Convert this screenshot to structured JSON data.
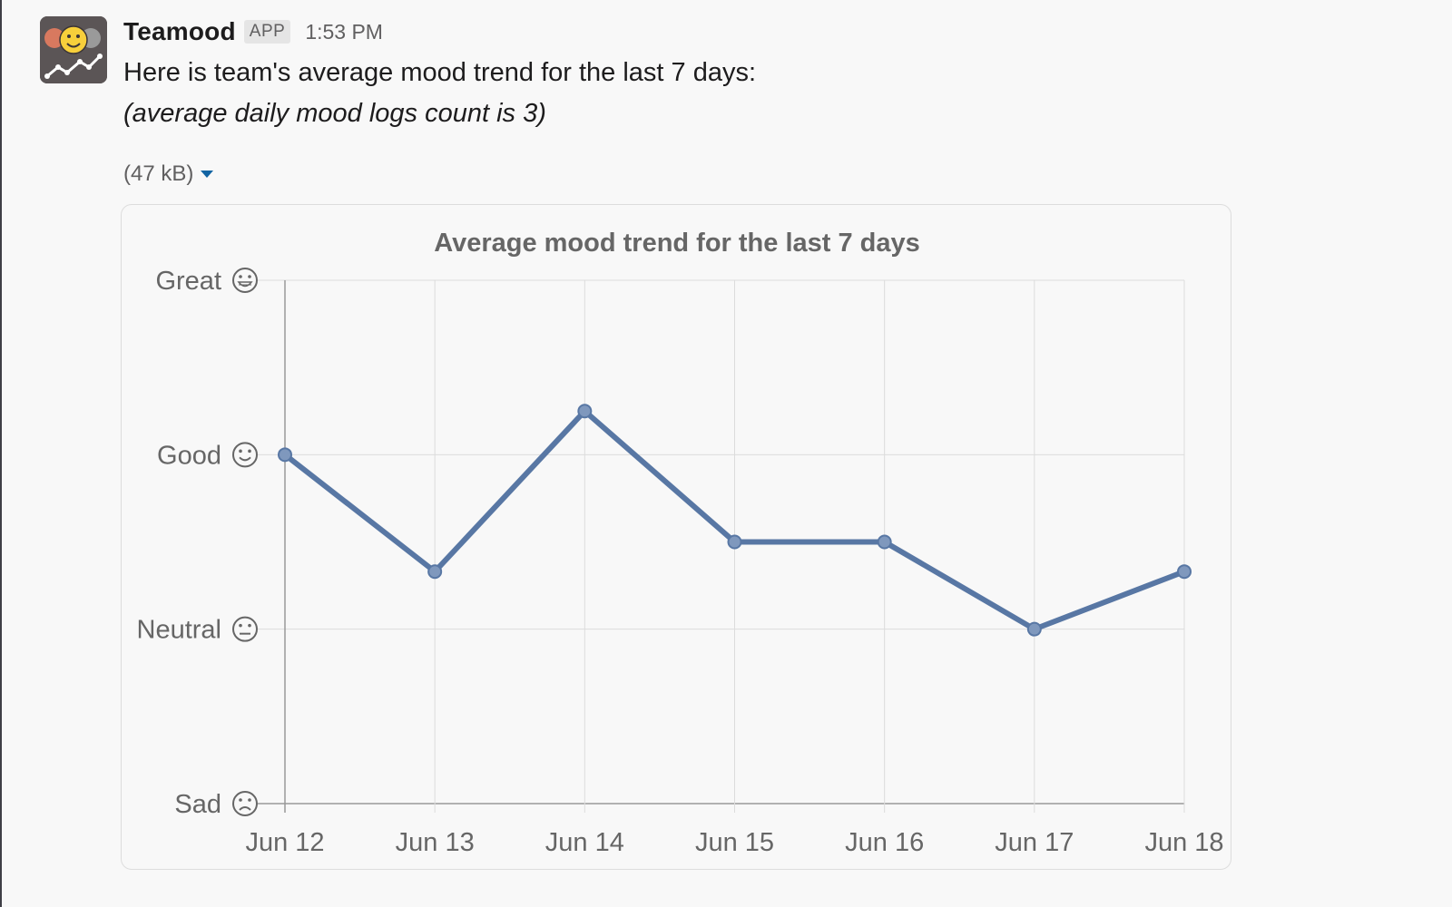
{
  "message": {
    "sender": "Teamood",
    "badge": "APP",
    "timestamp": "1:53 PM",
    "line1": "Here is team's average mood trend for the last 7 days:",
    "line2": "(average daily mood logs count is 3)",
    "avatar_icon": "teamood-logo-icon"
  },
  "attachment": {
    "size_label": "(47 kB)",
    "menu_icon": "caret-down-icon"
  },
  "colors": {
    "line": "#5877a4",
    "grid": "#dcdcdc",
    "axis": "#999999",
    "text": "#666666",
    "link": "#1264a3"
  },
  "chart_data": {
    "type": "line",
    "title": "Average mood trend for the last 7 days",
    "categories": [
      "Jun 12",
      "Jun 13",
      "Jun 14",
      "Jun 15",
      "Jun 16",
      "Jun 17",
      "Jun 18"
    ],
    "series": [
      {
        "values": [
          3.0,
          2.33,
          3.25,
          2.5,
          2.5,
          2.0,
          2.33
        ]
      }
    ],
    "y_ticks": [
      {
        "value": 1,
        "label": "Sad",
        "icon": "sad-face-icon"
      },
      {
        "value": 2,
        "label": "Neutral",
        "icon": "neutral-face-icon"
      },
      {
        "value": 3,
        "label": "Good",
        "icon": "smile-face-icon"
      },
      {
        "value": 4,
        "label": "Great",
        "icon": "grin-face-icon"
      }
    ],
    "ylim": [
      1,
      4
    ],
    "grid": true,
    "xlabel": "",
    "ylabel": ""
  }
}
